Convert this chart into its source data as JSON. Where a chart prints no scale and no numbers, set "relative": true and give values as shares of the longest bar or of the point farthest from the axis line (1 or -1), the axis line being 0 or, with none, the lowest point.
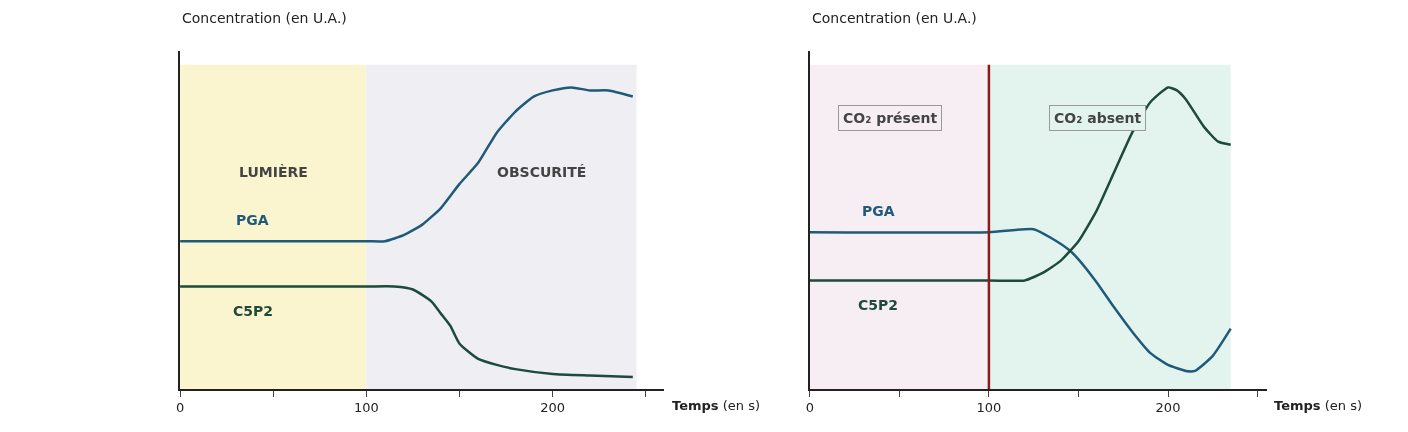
{
  "chart_data": [
    {
      "type": "line",
      "relative": true,
      "xlabel": "Temps (en s)",
      "ylabel": "Concentration (en U.A.)",
      "xlim": [
        0,
        260
      ],
      "xticks": [
        0,
        {
          "value": 50,
          "label": null
        },
        100,
        {
          "value": 150,
          "label": null
        },
        200,
        {
          "value": 250,
          "label": null
        }
      ],
      "grid": false,
      "legend": false,
      "bands": [
        {
          "axis": "x",
          "from": 0,
          "to": 100,
          "label": "LUMIÈRE",
          "color": "#fbf5cf"
        },
        {
          "axis": "x",
          "from": 100,
          "to": 245,
          "label": "OBSCURITÉ",
          "color": "#eeeef3"
        }
      ],
      "series": [
        {
          "name": "PGA",
          "color": "#1f5a7a",
          "x": [
            0,
            100,
            110,
            120,
            130,
            140,
            150,
            160,
            170,
            180,
            190,
            200,
            210,
            220,
            230,
            243
          ],
          "values": [
            0.49,
            0.49,
            0.49,
            0.51,
            0.545,
            0.6,
            0.68,
            0.75,
            0.85,
            0.92,
            0.97,
            0.99,
            1,
            0.99,
            0.99,
            0.97
          ]
        },
        {
          "name": "C5P2",
          "color": "#1d4a3a",
          "x": [
            0,
            100,
            115,
            125,
            135,
            140,
            145,
            150,
            160,
            170,
            180,
            200,
            220,
            243
          ],
          "values": [
            0.34,
            0.34,
            0.34,
            0.33,
            0.29,
            0.25,
            0.21,
            0.15,
            0.1,
            0.08,
            0.066,
            0.05,
            0.045,
            0.04
          ]
        }
      ]
    },
    {
      "type": "line",
      "relative": true,
      "xlabel": "Temps (en s)",
      "ylabel": "Concentration (en U.A.)",
      "xlim": [
        0,
        255
      ],
      "xticks": [
        0,
        {
          "value": 50,
          "label": null
        },
        100,
        {
          "value": 150,
          "label": null
        },
        200,
        {
          "value": 250,
          "label": null
        }
      ],
      "grid": false,
      "legend": false,
      "bands": [
        {
          "axis": "x",
          "from": 0,
          "to": 100,
          "label": "CO₂ présent",
          "color": "#f7eef3"
        },
        {
          "axis": "x",
          "from": 100,
          "to": 235,
          "label": "CO₂ absent",
          "color": "#e3f4ef"
        }
      ],
      "ref_lines": [
        {
          "axis": "x",
          "value": 100,
          "color": "#8b1a1a"
        }
      ],
      "series": [
        {
          "name": "PGA",
          "color": "#1f5a7a",
          "x": [
            0,
            100,
            125,
            135,
            145,
            150,
            160,
            170,
            180,
            190,
            200,
            210,
            215,
            225,
            235
          ],
          "values": [
            0.52,
            0.52,
            0.53,
            0.5,
            0.46,
            0.43,
            0.355,
            0.27,
            0.19,
            0.12,
            0.08,
            0.06,
            0.06,
            0.11,
            0.2
          ]
        },
        {
          "name": "C5P2",
          "color": "#1d4a3a",
          "x": [
            0,
            100,
            120,
            130,
            140,
            150,
            160,
            170,
            180,
            190,
            200,
            205,
            210,
            220,
            228,
            235
          ],
          "values": [
            0.36,
            0.36,
            0.36,
            0.385,
            0.425,
            0.49,
            0.59,
            0.72,
            0.85,
            0.95,
            1,
            0.99,
            0.96,
            0.87,
            0.82,
            0.81
          ]
        }
      ]
    }
  ]
}
